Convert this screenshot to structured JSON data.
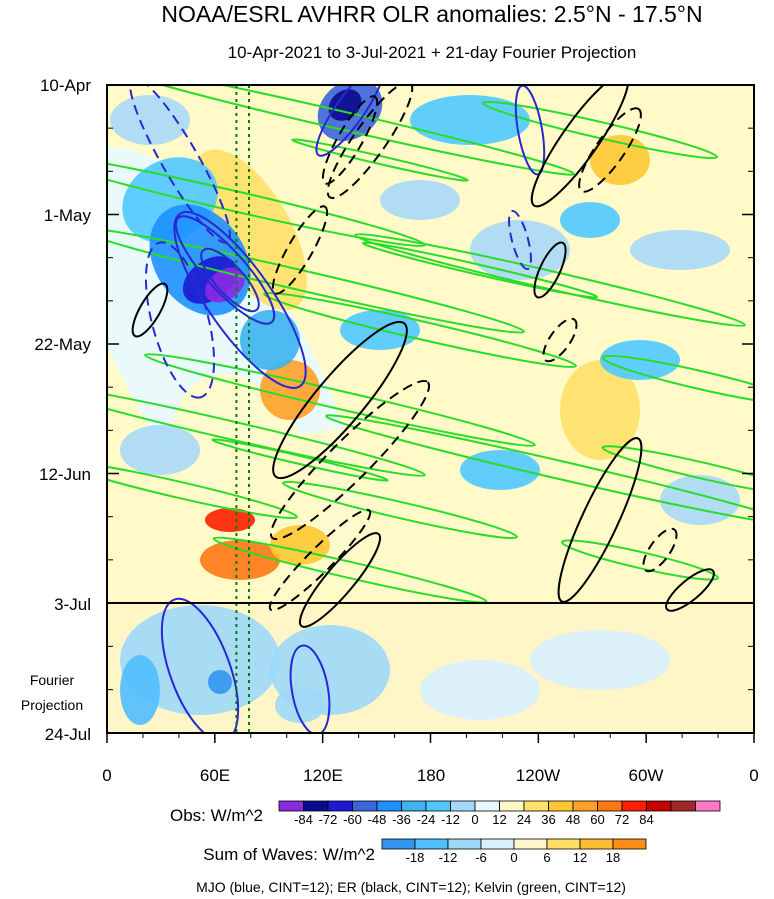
{
  "chart_data": {
    "type": "heatmap",
    "title": "NOAA/ESRL AVHRR OLR anomalies: 2.5°N - 17.5°N",
    "subtitle": "10-Apr-2021 to 3-Jul-2021 + 21-day Fourier Projection",
    "y_axis": {
      "orientation": "time increasing downward",
      "ticks": [
        "10-Apr",
        "1-May",
        "22-May",
        "12-Jun",
        "3-Jul",
        "24-Jul"
      ],
      "projection_label_line1": "Fourier",
      "projection_label_line2": "Projection",
      "observation_end": "3-Jul"
    },
    "x_axis": {
      "ticks": [
        "0",
        "60E",
        "120E",
        "180",
        "120W",
        "60W",
        "0"
      ],
      "longitudes": [
        0,
        60,
        120,
        180,
        240,
        300,
        360
      ]
    },
    "reference_lines_longitude": [
      72,
      79
    ],
    "obs_colorbar": {
      "label": "Obs: W/m^2",
      "levels": [
        "-84",
        "-72",
        "-60",
        "-48",
        "-36",
        "-24",
        "-12",
        "0",
        "12",
        "24",
        "36",
        "48",
        "60",
        "72",
        "84"
      ],
      "colors": [
        "#8a2be2",
        "#0a0a8c",
        "#1a1ad2",
        "#3c64dc",
        "#1e90ff",
        "#3cb4f0",
        "#50c8ff",
        "#a8d8f8",
        "#e8f8ff",
        "#fffac8",
        "#ffe068",
        "#ffc832",
        "#ffa028",
        "#ff7814",
        "#ff1e00",
        "#c80000",
        "#a02828",
        "#ff78c8"
      ]
    },
    "waves_colorbar": {
      "label": "Sum of Waves: W/m^2",
      "levels": [
        "-18",
        "-12",
        "-6",
        "0",
        "6",
        "12",
        "18"
      ],
      "colors": [
        "#3296f0",
        "#50beff",
        "#9ed8f8",
        "#d8f0ff",
        "#fff6c8",
        "#ffe064",
        "#ffbe32",
        "#ff8c14"
      ]
    },
    "contours": {
      "mjo_color": "#2828d2",
      "er_color": "#000000",
      "kelvin_color": "#28dc28",
      "legend": "MJO (blue, CINT=12); ER (black, CINT=12); Kelvin (green, CINT=12)"
    }
  }
}
